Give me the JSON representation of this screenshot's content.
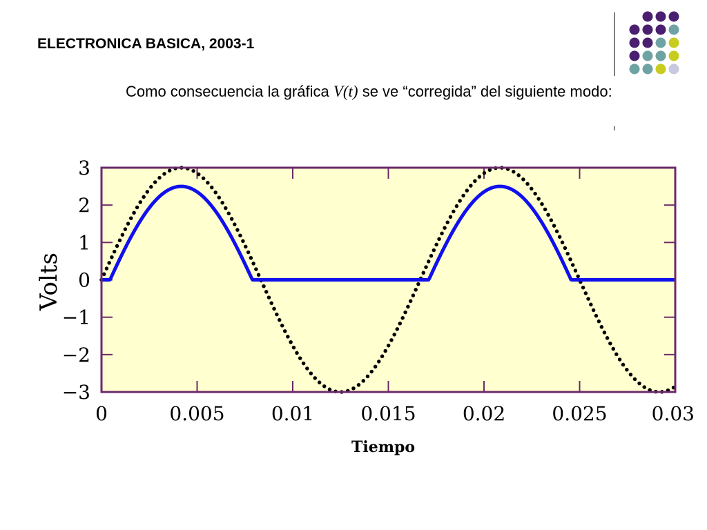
{
  "slide": {
    "title": "ELECTRONICA BASICA, 2003-1",
    "body_before": "Como consecuencia la gráfica ",
    "body_math": "V(t)",
    "body_after": " se ve “corregida” del siguiente modo:"
  },
  "decor": {
    "dot_colors": [
      "#4b1f6f",
      "#6fa3a3",
      "#c9cc20",
      "#c8c8e0"
    ],
    "grid": [
      [
        null,
        null,
        0,
        0,
        0
      ],
      [
        null,
        0,
        0,
        0,
        1
      ],
      [
        null,
        0,
        0,
        1,
        2
      ],
      [
        null,
        0,
        1,
        1,
        2
      ],
      [
        null,
        1,
        1,
        2,
        3
      ]
    ]
  },
  "chart_data": {
    "type": "line",
    "xlabel": "Tiempo",
    "ylabel": "Volts",
    "xlim": [
      0,
      0.03
    ],
    "ylim": [
      -3,
      3
    ],
    "x_ticks": [
      "0",
      "0.005",
      "0.01",
      "0.015",
      "0.02",
      "0.025",
      "0.03"
    ],
    "x_tick_values": [
      0,
      0.005,
      0.01,
      0.015,
      0.02,
      0.025,
      0.03
    ],
    "y_ticks": [
      "3",
      "2",
      "1",
      "0",
      "−1",
      "−2",
      "−3"
    ],
    "y_tick_values": [
      3,
      2,
      1,
      0,
      -1,
      -2,
      -3
    ],
    "plot_background": "#ffffd0",
    "frame_color": "#6b2a6b",
    "series": [
      {
        "style": "dotted",
        "color": "#000000",
        "function": "3*sin(2*pi*60*t)",
        "amplitude": 3,
        "frequency_hz": 60
      },
      {
        "style": "solid",
        "color": "#1010ee",
        "function": "max(0, 3*sin(2*pi*60*t) - 0.5)",
        "amplitude": 3,
        "frequency_hz": 60,
        "offset": -0.5,
        "clip_min": 0
      }
    ]
  }
}
